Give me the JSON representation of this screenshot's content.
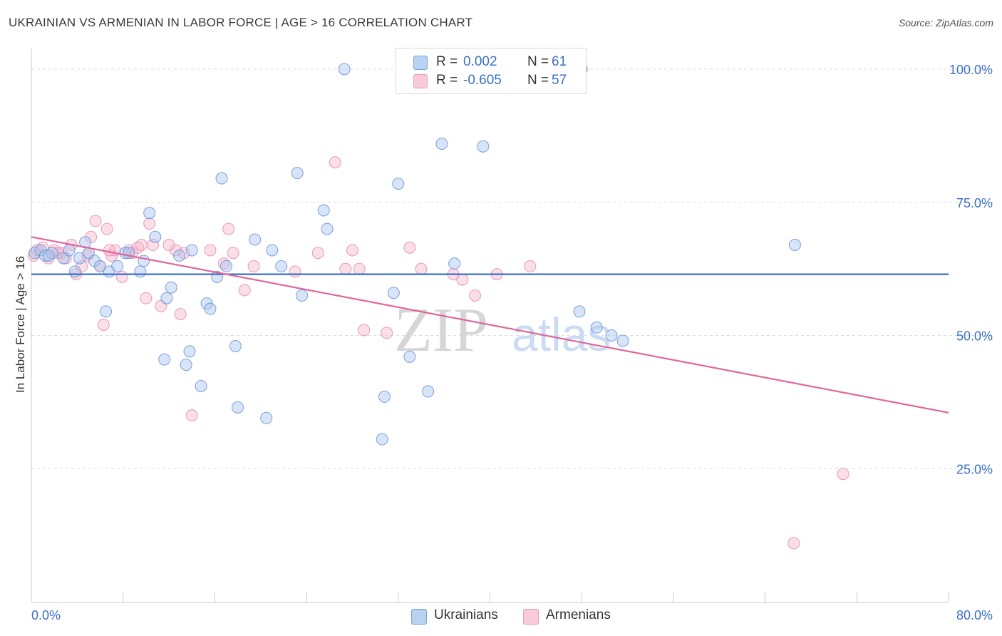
{
  "title": "UKRAINIAN VS ARMENIAN IN LABOR FORCE | AGE > 16 CORRELATION CHART",
  "source": "Source: ZipAtlas.com",
  "watermark": {
    "zip": "ZIP",
    "atlas": "atlas"
  },
  "colors": {
    "blue": "#3b6fc4",
    "blue_fill": "#a8c6ef",
    "pink": "#e0679a",
    "pink_fill": "#f5b8cc",
    "grid": "#dddddd",
    "axis_text": "#3b6fc4"
  },
  "legend": [
    {
      "r_label": "R =",
      "r_value": "0.002",
      "n_label": "N =",
      "n_value": "61"
    },
    {
      "r_label": "R =",
      "r_value": "-0.605",
      "n_label": "N =",
      "n_value": "57"
    }
  ],
  "bottom_legend": [
    "Ukrainians",
    "Armenians"
  ],
  "chart_data": {
    "type": "scatter",
    "title": "UKRAINIAN VS ARMENIAN IN LABOR FORCE | AGE > 16 CORRELATION CHART",
    "xlabel": "",
    "ylabel": "In Labor Force | Age > 16",
    "xlim": [
      0,
      80
    ],
    "ylim": [
      0,
      105
    ],
    "x_tick_labels": [
      "0.0%",
      "80.0%"
    ],
    "y_tick_labels": [
      "25.0%",
      "50.0%",
      "75.0%",
      "100.0%"
    ],
    "y_ticks": [
      25,
      50,
      75,
      100
    ],
    "grid": true,
    "legend_position": "top-center",
    "series": [
      {
        "name": "Ukrainians",
        "trend": {
          "x": [
            0,
            80
          ],
          "y": [
            61.5,
            61.5
          ]
        },
        "points": [
          [
            0.3,
            65.5
          ],
          [
            0.8,
            66
          ],
          [
            1.2,
            65
          ],
          [
            1.8,
            65.5
          ],
          [
            2.8,
            64.5
          ],
          [
            3.3,
            66
          ],
          [
            3.8,
            62
          ],
          [
            4.2,
            64.5
          ],
          [
            4.7,
            67.5
          ],
          [
            5.0,
            65.5
          ],
          [
            5.5,
            64
          ],
          [
            6.0,
            63
          ],
          [
            6.5,
            54.5
          ],
          [
            6.8,
            62
          ],
          [
            7.5,
            63
          ],
          [
            8.2,
            65.5
          ],
          [
            8.5,
            65.5
          ],
          [
            9.5,
            62
          ],
          [
            9.8,
            64
          ],
          [
            10.3,
            73
          ],
          [
            10.8,
            68.5
          ],
          [
            11.6,
            45.5
          ],
          [
            11.8,
            57
          ],
          [
            12.2,
            59
          ],
          [
            12.9,
            65
          ],
          [
            13.5,
            44.5
          ],
          [
            13.8,
            47
          ],
          [
            14.0,
            66
          ],
          [
            14.8,
            40.5
          ],
          [
            15.3,
            56
          ],
          [
            15.6,
            55
          ],
          [
            16.2,
            61
          ],
          [
            16.6,
            79.5
          ],
          [
            17.0,
            63
          ],
          [
            17.8,
            48
          ],
          [
            18.0,
            36.5
          ],
          [
            19.5,
            68
          ],
          [
            20.5,
            34.5
          ],
          [
            21.0,
            66
          ],
          [
            21.8,
            63
          ],
          [
            23.2,
            80.5
          ],
          [
            23.6,
            57.5
          ],
          [
            25.5,
            73.5
          ],
          [
            25.8,
            70
          ],
          [
            27.3,
            100
          ],
          [
            30.6,
            30.5
          ],
          [
            30.8,
            38.5
          ],
          [
            31.6,
            58
          ],
          [
            32.0,
            78.5
          ],
          [
            33.0,
            46
          ],
          [
            34.6,
            39.5
          ],
          [
            35.8,
            86
          ],
          [
            36.9,
            63.5
          ],
          [
            39.4,
            85.5
          ],
          [
            47.8,
            54.5
          ],
          [
            49.3,
            51.5
          ],
          [
            50.6,
            50
          ],
          [
            51.6,
            49
          ],
          [
            66.6,
            67
          ],
          [
            48.0,
            100
          ],
          [
            1.5,
            65
          ]
        ]
      },
      {
        "name": "Armenians",
        "trend": {
          "x": [
            0,
            80
          ],
          "y": [
            68.5,
            35.5
          ]
        },
        "points": [
          [
            0.2,
            65
          ],
          [
            1.0,
            66.5
          ],
          [
            1.5,
            64.5
          ],
          [
            2.0,
            66
          ],
          [
            2.6,
            65.5
          ],
          [
            3.0,
            64.5
          ],
          [
            3.5,
            67
          ],
          [
            3.9,
            61.5
          ],
          [
            4.4,
            63
          ],
          [
            4.9,
            65
          ],
          [
            5.2,
            68.5
          ],
          [
            5.6,
            71.5
          ],
          [
            6.0,
            63
          ],
          [
            6.3,
            52
          ],
          [
            6.6,
            70
          ],
          [
            7.0,
            65
          ],
          [
            7.3,
            66
          ],
          [
            7.9,
            61
          ],
          [
            8.5,
            66
          ],
          [
            8.8,
            65.5
          ],
          [
            9.3,
            66.5
          ],
          [
            9.6,
            67
          ],
          [
            10.0,
            57
          ],
          [
            10.3,
            71
          ],
          [
            10.6,
            67
          ],
          [
            11.3,
            55.5
          ],
          [
            12.6,
            66
          ],
          [
            13.0,
            54
          ],
          [
            13.3,
            65.5
          ],
          [
            14.0,
            35
          ],
          [
            15.6,
            66
          ],
          [
            16.8,
            63.5
          ],
          [
            17.2,
            70
          ],
          [
            17.6,
            65.5
          ],
          [
            18.6,
            58.5
          ],
          [
            19.4,
            63
          ],
          [
            23.0,
            62
          ],
          [
            25.0,
            65.5
          ],
          [
            26.5,
            82.5
          ],
          [
            27.4,
            62.5
          ],
          [
            28.0,
            66
          ],
          [
            28.6,
            62.5
          ],
          [
            29.0,
            51
          ],
          [
            31.0,
            50.5
          ],
          [
            33.0,
            66.5
          ],
          [
            34.0,
            62.5
          ],
          [
            36.8,
            61.5
          ],
          [
            37.6,
            60.5
          ],
          [
            38.7,
            57.5
          ],
          [
            40.6,
            61.5
          ],
          [
            43.5,
            63
          ],
          [
            66.5,
            11
          ],
          [
            70.8,
            24
          ],
          [
            0.5,
            66
          ],
          [
            2.3,
            65.5
          ],
          [
            12.0,
            67
          ],
          [
            6.8,
            66
          ]
        ]
      }
    ]
  }
}
